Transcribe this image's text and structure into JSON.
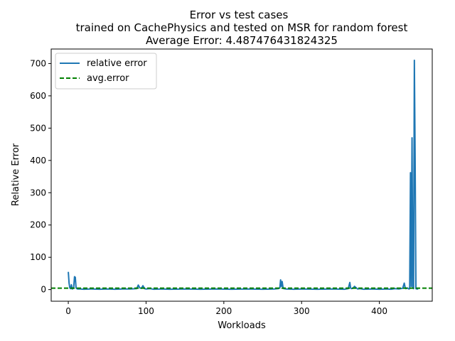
{
  "chart_data": {
    "type": "line",
    "title": "Error vs test cases",
    "subtitle": "trained on CachePhysics and tested on MSR for random forest",
    "subtitle2": "Average Error: 4.487476431824325",
    "xlabel": "Workloads",
    "ylabel": "Relative Error",
    "xlim": [
      -22,
      468
    ],
    "ylim": [
      -36,
      745
    ],
    "xticks": [
      0,
      100,
      200,
      300,
      400
    ],
    "yticks": [
      0,
      100,
      200,
      300,
      400,
      500,
      600,
      700
    ],
    "legend_position": "top-left",
    "grid": false,
    "avg_line": {
      "name": "avg.error",
      "y": 4.487476431824325,
      "color": "#008000",
      "style": "dashed"
    },
    "series": [
      {
        "name": "relative error",
        "color": "#1f77b4",
        "x": [
          0,
          1,
          2,
          3,
          4,
          5,
          6,
          7,
          8,
          9,
          10,
          11,
          12,
          15,
          20,
          30,
          40,
          50,
          60,
          70,
          80,
          88,
          90,
          92,
          94,
          96,
          98,
          100,
          105,
          110,
          120,
          130,
          150,
          170,
          190,
          210,
          230,
          250,
          265,
          270,
          272,
          273,
          274,
          275,
          276,
          277,
          280,
          290,
          300,
          320,
          340,
          355,
          360,
          362,
          363,
          364,
          366,
          368,
          370,
          372,
          375,
          380,
          390,
          400,
          410,
          415,
          420,
          425,
          430,
          432,
          433,
          434,
          436,
          438,
          439,
          440,
          441,
          442,
          443,
          444,
          445,
          446,
          447,
          448,
          450
        ],
        "y": [
          55,
          20,
          5,
          3,
          15,
          2,
          3,
          8,
          40,
          38,
          5,
          3,
          2,
          2,
          1,
          2,
          1,
          2,
          1,
          2,
          2,
          3,
          14,
          5,
          4,
          12,
          3,
          2,
          3,
          1,
          2,
          1,
          2,
          1,
          2,
          1,
          2,
          1,
          2,
          3,
          5,
          30,
          10,
          25,
          8,
          3,
          2,
          1,
          2,
          1,
          2,
          1,
          3,
          22,
          5,
          3,
          4,
          10,
          6,
          2,
          3,
          1,
          2,
          1,
          2,
          1,
          3,
          2,
          4,
          20,
          8,
          3,
          5,
          2,
          3,
          362,
          10,
          470,
          5,
          3,
          710,
          400,
          3,
          2,
          2
        ]
      }
    ]
  }
}
